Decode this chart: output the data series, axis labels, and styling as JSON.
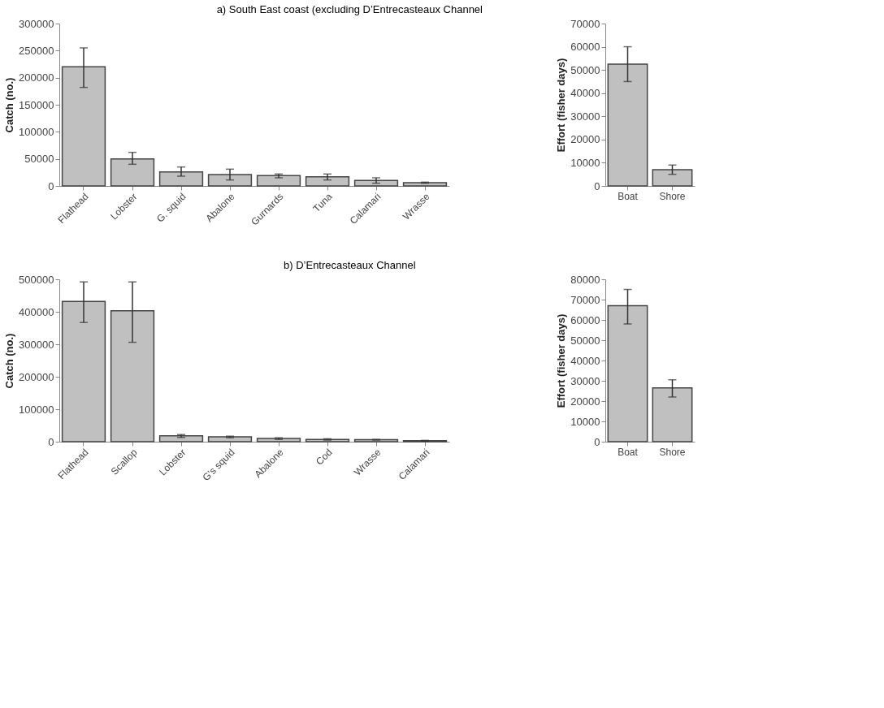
{
  "chart_data": [
    {
      "type": "bar",
      "title": "a)    South East coast (excluding D’Entrecasteaux Channel",
      "ylabel": "Catch (no.)",
      "categories": [
        "Flathead",
        "Lobster",
        "G. squid",
        "Abalone",
        "Gurnards",
        "Tuna",
        "Calamari",
        "Wrasse"
      ],
      "values": [
        220000,
        50000,
        26000,
        21000,
        19000,
        17000,
        10000,
        6000
      ],
      "errors": [
        [
          182000,
          255000
        ],
        [
          40000,
          62000
        ],
        [
          18000,
          35000
        ],
        [
          11000,
          31000
        ],
        [
          15000,
          22000
        ],
        [
          11000,
          22000
        ],
        [
          5000,
          15000
        ],
        [
          5000,
          7000
        ]
      ],
      "color": "#c0c0c0",
      "ylim": [
        0,
        300000
      ],
      "yticks": [
        0,
        50000,
        100000,
        150000,
        200000,
        250000,
        300000
      ],
      "grid": false
    },
    {
      "type": "bar",
      "ylabel": "Effort (fisher days)",
      "categories": [
        "Boat",
        "Shore"
      ],
      "values": [
        52500,
        7000
      ],
      "errors": [
        [
          45000,
          60000
        ],
        [
          5000,
          9000
        ]
      ],
      "color": "#c0c0c0",
      "ylim": [
        0,
        70000
      ],
      "yticks": [
        0,
        10000,
        20000,
        30000,
        40000,
        50000,
        60000,
        70000
      ],
      "grid": false
    },
    {
      "type": "bar",
      "title": "b)    D’Entrecasteaux Channel",
      "ylabel": "Catch (no.)",
      "categories": [
        "Flathead",
        "Scallop",
        "Lobster",
        "G's squid",
        "Abalone",
        "Cod",
        "Wrasse",
        "Calamari"
      ],
      "values": [
        432000,
        403000,
        18000,
        15000,
        10000,
        7000,
        6000,
        3000
      ],
      "errors": [
        [
          367000,
          492000
        ],
        [
          306000,
          492000
        ],
        [
          13000,
          22000
        ],
        [
          12000,
          17000
        ],
        [
          7000,
          12000
        ],
        [
          5000,
          9000
        ],
        [
          5000,
          7000
        ],
        [
          2000,
          4000
        ]
      ],
      "color": "#c0c0c0",
      "ylim": [
        0,
        500000
      ],
      "yticks": [
        0,
        100000,
        200000,
        300000,
        400000,
        500000
      ],
      "grid": false
    },
    {
      "type": "bar",
      "ylabel": "Effort (fisher days)",
      "categories": [
        "Boat",
        "Shore"
      ],
      "values": [
        67000,
        26500
      ],
      "errors": [
        [
          58000,
          75000
        ],
        [
          22000,
          30500
        ]
      ],
      "color": "#c0c0c0",
      "ylim": [
        0,
        80000
      ],
      "yticks": [
        0,
        10000,
        20000,
        30000,
        40000,
        50000,
        60000,
        70000,
        80000
      ],
      "grid": false
    }
  ]
}
